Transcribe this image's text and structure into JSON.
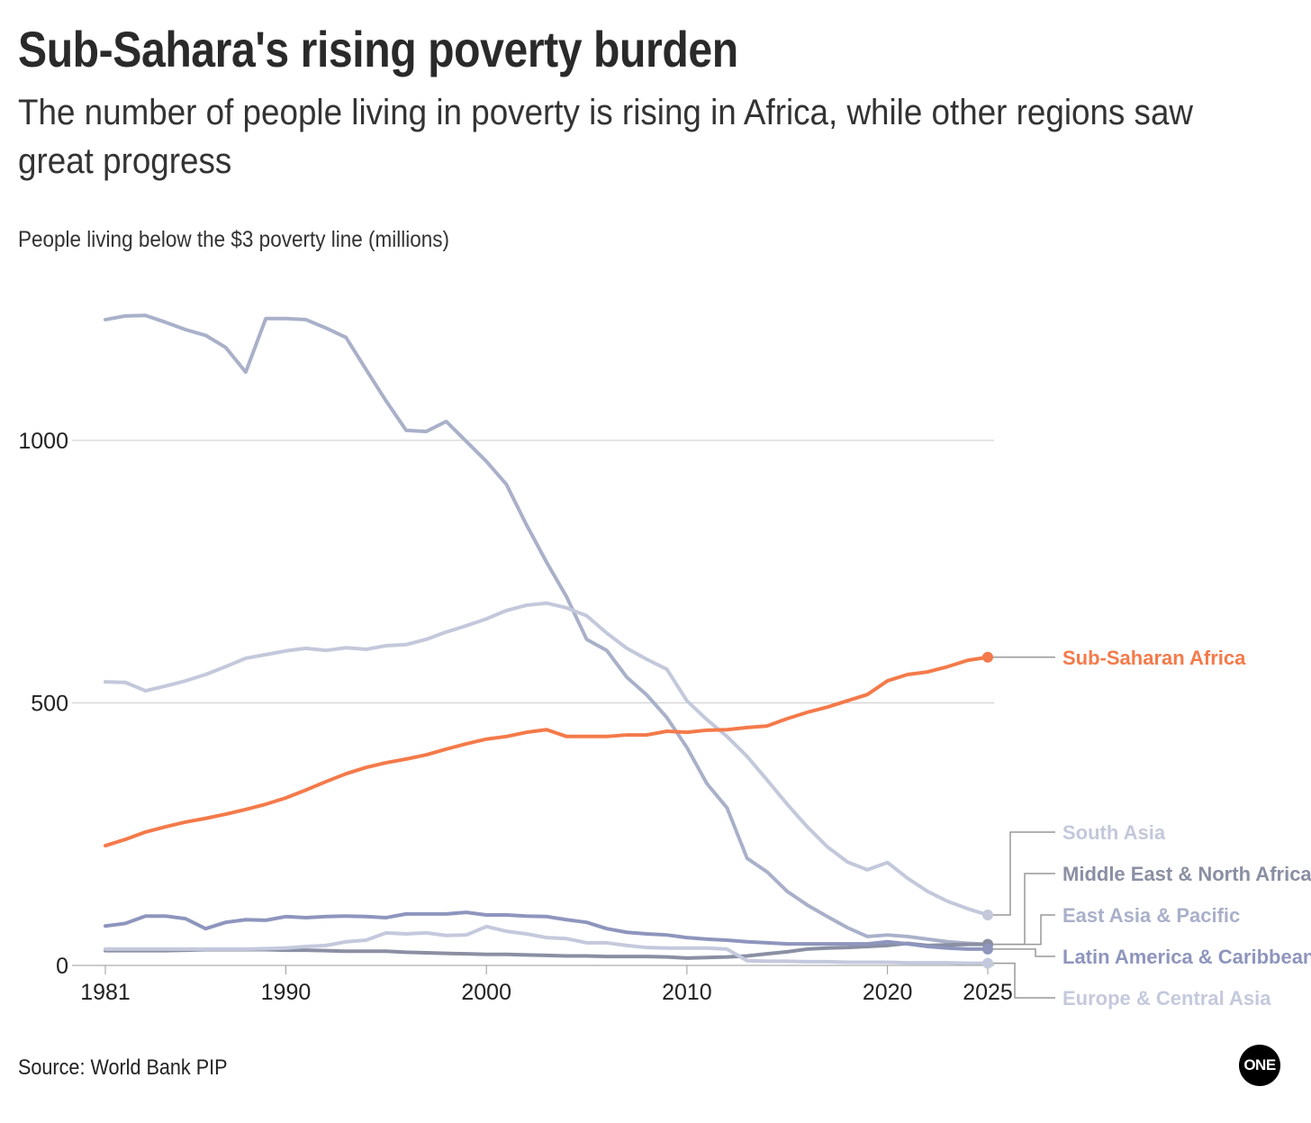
{
  "title": "Sub-Sahara's rising poverty burden",
  "subtitle": "The number of people living in poverty is rising in Africa, while other regions saw great progress",
  "source": "Source: World Bank PIP",
  "logo": "ONE",
  "chart_data": {
    "type": "line",
    "title": "Sub-Sahara's rising poverty burden",
    "ylabel": "People living below the $3 poverty line (millions)",
    "xlabel": "",
    "xlim": [
      1981,
      2025
    ],
    "ylim": [
      0,
      1250
    ],
    "x_ticks": [
      "1981",
      "1990",
      "2000",
      "2010",
      "2020",
      "2025"
    ],
    "y_ticks": [
      "0",
      "500",
      "1000"
    ],
    "grid": "horizontal",
    "legend": "direct-labels-right",
    "x": [
      1981,
      1982,
      1983,
      1984,
      1985,
      1986,
      1987,
      1988,
      1989,
      1990,
      1991,
      1992,
      1993,
      1994,
      1995,
      1996,
      1997,
      1998,
      1999,
      2000,
      2001,
      2002,
      2003,
      2004,
      2005,
      2006,
      2007,
      2008,
      2009,
      2010,
      2011,
      2012,
      2013,
      2014,
      2015,
      2016,
      2017,
      2018,
      2019,
      2020,
      2021,
      2022,
      2023,
      2024,
      2025
    ],
    "series": [
      {
        "name": "East Asia & Pacific",
        "color": "#a9b0c9",
        "values": [
          1230,
          1237,
          1238,
          1225,
          1211,
          1200,
          1177,
          1130,
          1232,
          1232,
          1230,
          1214,
          1196,
          1135,
          1075,
          1019,
          1017,
          1036,
          998,
          960,
          916,
          839,
          768,
          702,
          621,
          600,
          549,
          515,
          472,
          415,
          346,
          300,
          204,
          178,
          141,
          115,
          93,
          72,
          55,
          58,
          55,
          50,
          45,
          42,
          40
        ]
      },
      {
        "name": "South Asia",
        "color": "#c3c8db",
        "values": [
          540,
          539,
          523,
          532,
          542,
          554,
          569,
          585,
          592,
          599,
          604,
          600,
          605,
          602,
          609,
          611,
          621,
          635,
          647,
          660,
          676,
          686,
          690,
          681,
          666,
          633,
          604,
          583,
          564,
          504,
          468,
          436,
          398,
          353,
          307,
          264,
          226,
          197,
          182,
          196,
          166,
          141,
          122,
          108,
          96
        ]
      },
      {
        "name": "Middle East & North Africa",
        "color": "#8a8fa3",
        "values": [
          28,
          28,
          28,
          28,
          29,
          30,
          30,
          30,
          30,
          29,
          29,
          28,
          27,
          27,
          27,
          25,
          24,
          23,
          22,
          21,
          21,
          20,
          19,
          18,
          18,
          17,
          17,
          17,
          16,
          14,
          15,
          16,
          18,
          22,
          26,
          31,
          33,
          34,
          36,
          38,
          42,
          38,
          39,
          40,
          40
        ]
      },
      {
        "name": "Latin America & Caribbean",
        "color": "#8e95bd",
        "values": [
          75,
          80,
          94,
          94,
          89,
          70,
          82,
          87,
          86,
          93,
          91,
          93,
          94,
          93,
          91,
          98,
          98,
          98,
          101,
          96,
          96,
          94,
          93,
          87,
          82,
          70,
          63,
          60,
          58,
          53,
          50,
          48,
          45,
          43,
          41,
          41,
          41,
          41,
          41,
          45,
          41,
          36,
          33,
          31,
          31
        ]
      },
      {
        "name": "Europe & Central Asia",
        "color": "#c4c9dd",
        "values": [
          31,
          31,
          31,
          31,
          31,
          31,
          31,
          31,
          32,
          33,
          36,
          38,
          45,
          48,
          62,
          60,
          62,
          57,
          58,
          74,
          65,
          60,
          53,
          51,
          43,
          43,
          38,
          34,
          33,
          33,
          33,
          31,
          9,
          8,
          8,
          7,
          7,
          6,
          6,
          6,
          5,
          5,
          5,
          4,
          4
        ]
      },
      {
        "name": "Sub-Saharan Africa",
        "color": "#f47a4a",
        "values": [
          228,
          240,
          254,
          264,
          273,
          280,
          288,
          297,
          307,
          319,
          334,
          350,
          365,
          377,
          386,
          393,
          401,
          412,
          422,
          431,
          436,
          444,
          449,
          436,
          436,
          436,
          439,
          439,
          446,
          444,
          448,
          449,
          453,
          456,
          470,
          482,
          492,
          504,
          516,
          542,
          554,
          559,
          569,
          581,
          587
        ]
      }
    ]
  }
}
